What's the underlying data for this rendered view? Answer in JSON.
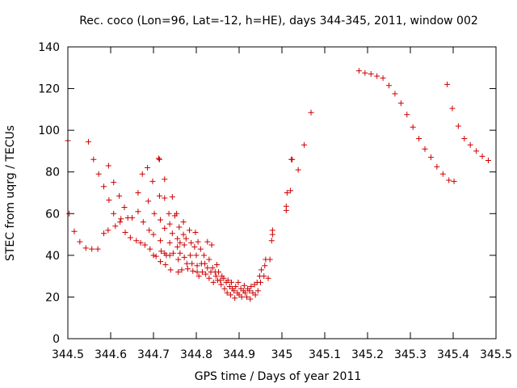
{
  "chart_data": {
    "type": "scatter",
    "title": "Rec. coco (Lon=96, Lat=-12, h=HE), days 344-345, 2011, window 002",
    "xlabel": "GPS time / Days of year 2011",
    "ylabel": "STEC from uqrg / TECUs",
    "xlim": [
      344.5,
      345.5
    ],
    "ylim": [
      0,
      140
    ],
    "x_ticks": [
      344.5,
      344.6,
      344.7,
      344.8,
      344.9,
      345,
      345.1,
      345.2,
      345.3,
      345.4,
      345.5
    ],
    "x_tick_labels": [
      "344.5",
      "344.6",
      "344.7",
      "344.8",
      "344.9",
      "345",
      "345.1",
      "345.2",
      "345.3",
      "345.4",
      "345.5"
    ],
    "y_ticks": [
      0,
      20,
      40,
      60,
      80,
      100,
      120,
      140
    ],
    "y_tick_labels": [
      "0",
      "20",
      "40",
      "60",
      "80",
      "100",
      "120",
      "140"
    ],
    "marker": "+",
    "color": "#cc0000",
    "series": [
      {
        "name": "STEC",
        "points": [
          [
            344.5,
            95.0
          ],
          [
            344.503,
            60.0
          ],
          [
            344.515,
            51.5
          ],
          [
            344.528,
            46.5
          ],
          [
            344.542,
            43.5
          ],
          [
            344.548,
            94.5
          ],
          [
            344.556,
            43.0
          ],
          [
            344.56,
            86.0
          ],
          [
            344.57,
            43.0
          ],
          [
            344.572,
            79.0
          ],
          [
            344.584,
            73.0
          ],
          [
            344.584,
            50.5
          ],
          [
            344.594,
            52.0
          ],
          [
            344.595,
            83.0
          ],
          [
            344.596,
            66.5
          ],
          [
            344.607,
            75.0
          ],
          [
            344.607,
            60.0
          ],
          [
            344.611,
            54.0
          ],
          [
            344.62,
            68.5
          ],
          [
            344.622,
            56.0
          ],
          [
            344.624,
            57.5
          ],
          [
            344.632,
            63.0
          ],
          [
            344.634,
            51.0
          ],
          [
            344.64,
            58.0
          ],
          [
            344.646,
            48.5
          ],
          [
            344.65,
            58.0
          ],
          [
            344.66,
            47.0
          ],
          [
            344.664,
            70.0
          ],
          [
            344.664,
            61.0
          ],
          [
            344.67,
            46.0
          ],
          [
            344.674,
            79.0
          ],
          [
            344.676,
            56.0
          ],
          [
            344.68,
            45.0
          ],
          [
            344.686,
            82.0
          ],
          [
            344.688,
            66.0
          ],
          [
            344.69,
            52.0
          ],
          [
            344.692,
            43.0
          ],
          [
            344.698,
            75.5
          ],
          [
            344.7,
            50.0
          ],
          [
            344.7,
            40.0
          ],
          [
            344.702,
            60.0
          ],
          [
            344.706,
            39.5
          ],
          [
            344.712,
            86.5
          ],
          [
            344.714,
            86.0
          ],
          [
            344.714,
            68.5
          ],
          [
            344.716,
            57.0
          ],
          [
            344.716,
            47.0
          ],
          [
            344.716,
            37.0
          ],
          [
            344.718,
            42.0
          ],
          [
            344.726,
            76.5
          ],
          [
            344.726,
            67.5
          ],
          [
            344.726,
            53.0
          ],
          [
            344.726,
            41.0
          ],
          [
            344.728,
            35.5
          ],
          [
            344.73,
            40.0
          ],
          [
            344.736,
            60.0
          ],
          [
            344.738,
            55.0
          ],
          [
            344.738,
            46.0
          ],
          [
            344.738,
            40.0
          ],
          [
            344.74,
            33.0
          ],
          [
            344.744,
            68.0
          ],
          [
            344.744,
            50.5
          ],
          [
            344.746,
            41.0
          ],
          [
            344.75,
            59.0
          ],
          [
            344.754,
            60.0
          ],
          [
            344.756,
            48.0
          ],
          [
            344.756,
            44.0
          ],
          [
            344.758,
            38.0
          ],
          [
            344.758,
            32.0
          ],
          [
            344.76,
            53.5
          ],
          [
            344.762,
            46.0
          ],
          [
            344.762,
            41.0
          ],
          [
            344.766,
            33.0
          ],
          [
            344.77,
            56.0
          ],
          [
            344.77,
            50.0
          ],
          [
            344.772,
            45.0
          ],
          [
            344.772,
            39.0
          ],
          [
            344.776,
            48.0
          ],
          [
            344.778,
            36.0
          ],
          [
            344.78,
            33.5
          ],
          [
            344.784,
            52.0
          ],
          [
            344.786,
            40.0
          ],
          [
            344.788,
            46.0
          ],
          [
            344.79,
            36.0
          ],
          [
            344.792,
            32.5
          ],
          [
            344.796,
            44.0
          ],
          [
            344.798,
            51.0
          ],
          [
            344.8,
            40.0
          ],
          [
            344.802,
            35.0
          ],
          [
            344.802,
            32.0
          ],
          [
            344.804,
            46.5
          ],
          [
            344.806,
            30.0
          ],
          [
            344.81,
            43.0
          ],
          [
            344.812,
            36.0
          ],
          [
            344.814,
            32.0
          ],
          [
            344.818,
            40.0
          ],
          [
            344.82,
            36.0
          ],
          [
            344.822,
            31.0
          ],
          [
            344.826,
            46.5
          ],
          [
            344.826,
            34.0
          ],
          [
            344.83,
            38.0
          ],
          [
            344.83,
            29.0
          ],
          [
            344.834,
            32.0
          ],
          [
            344.836,
            45.0
          ],
          [
            344.838,
            34.0
          ],
          [
            344.84,
            27.0
          ],
          [
            344.844,
            32.0
          ],
          [
            344.846,
            30.0
          ],
          [
            344.848,
            35.5
          ],
          [
            344.85,
            28.0
          ],
          [
            344.852,
            32.0
          ],
          [
            344.856,
            28.0
          ],
          [
            344.858,
            26.0
          ],
          [
            344.86,
            30.0
          ],
          [
            344.864,
            29.0
          ],
          [
            344.866,
            24.0
          ],
          [
            344.87,
            27.0
          ],
          [
            344.872,
            22.0
          ],
          [
            344.874,
            28.0
          ],
          [
            344.878,
            25.0
          ],
          [
            344.88,
            21.0
          ],
          [
            344.882,
            27.0
          ],
          [
            344.884,
            24.0
          ],
          [
            344.888,
            23.0
          ],
          [
            344.89,
            19.5
          ],
          [
            344.892,
            25.0
          ],
          [
            344.896,
            22.0
          ],
          [
            344.898,
            27.0
          ],
          [
            344.9,
            21.0
          ],
          [
            344.904,
            24.0
          ],
          [
            344.906,
            20.0
          ],
          [
            344.91,
            23.0
          ],
          [
            344.912,
            25.5
          ],
          [
            344.914,
            22.0
          ],
          [
            344.918,
            20.0
          ],
          [
            344.92,
            24.0
          ],
          [
            344.924,
            23.0
          ],
          [
            344.926,
            19.0
          ],
          [
            344.928,
            25.0
          ],
          [
            344.932,
            22.0
          ],
          [
            344.936,
            26.0
          ],
          [
            344.938,
            21.0
          ],
          [
            344.942,
            27.0
          ],
          [
            344.944,
            23.0
          ],
          [
            344.948,
            30.0
          ],
          [
            344.95,
            27.0
          ],
          [
            344.952,
            33.0
          ],
          [
            344.958,
            30.0
          ],
          [
            344.96,
            35.0
          ],
          [
            344.962,
            38.0
          ],
          [
            344.968,
            29.0
          ],
          [
            344.972,
            38.0
          ],
          [
            344.976,
            47.0
          ],
          [
            344.978,
            50.0
          ],
          [
            344.978,
            52.0
          ],
          [
            345.01,
            61.5
          ],
          [
            345.01,
            63.5
          ],
          [
            345.012,
            70.0
          ],
          [
            345.02,
            71.0
          ],
          [
            345.022,
            86.0
          ],
          [
            345.024,
            86.0
          ],
          [
            345.038,
            81.0
          ],
          [
            345.052,
            93.0
          ],
          [
            345.068,
            108.5
          ],
          [
            345.18,
            128.5
          ],
          [
            345.194,
            127.5
          ],
          [
            345.208,
            127.0
          ],
          [
            345.222,
            126.0
          ],
          [
            345.236,
            125.0
          ],
          [
            345.25,
            121.5
          ],
          [
            345.264,
            117.5
          ],
          [
            345.278,
            113.0
          ],
          [
            345.292,
            107.5
          ],
          [
            345.306,
            101.5
          ],
          [
            345.32,
            96.0
          ],
          [
            345.334,
            91.0
          ],
          [
            345.348,
            87.0
          ],
          [
            345.362,
            82.5
          ],
          [
            345.376,
            79.0
          ],
          [
            345.386,
            122.0
          ],
          [
            345.39,
            76.0
          ],
          [
            345.398,
            110.5
          ],
          [
            345.402,
            75.5
          ],
          [
            345.412,
            102.0
          ],
          [
            345.426,
            96.0
          ],
          [
            345.44,
            93.0
          ],
          [
            345.454,
            90.0
          ],
          [
            345.468,
            87.5
          ],
          [
            345.482,
            85.5
          ]
        ]
      }
    ]
  }
}
